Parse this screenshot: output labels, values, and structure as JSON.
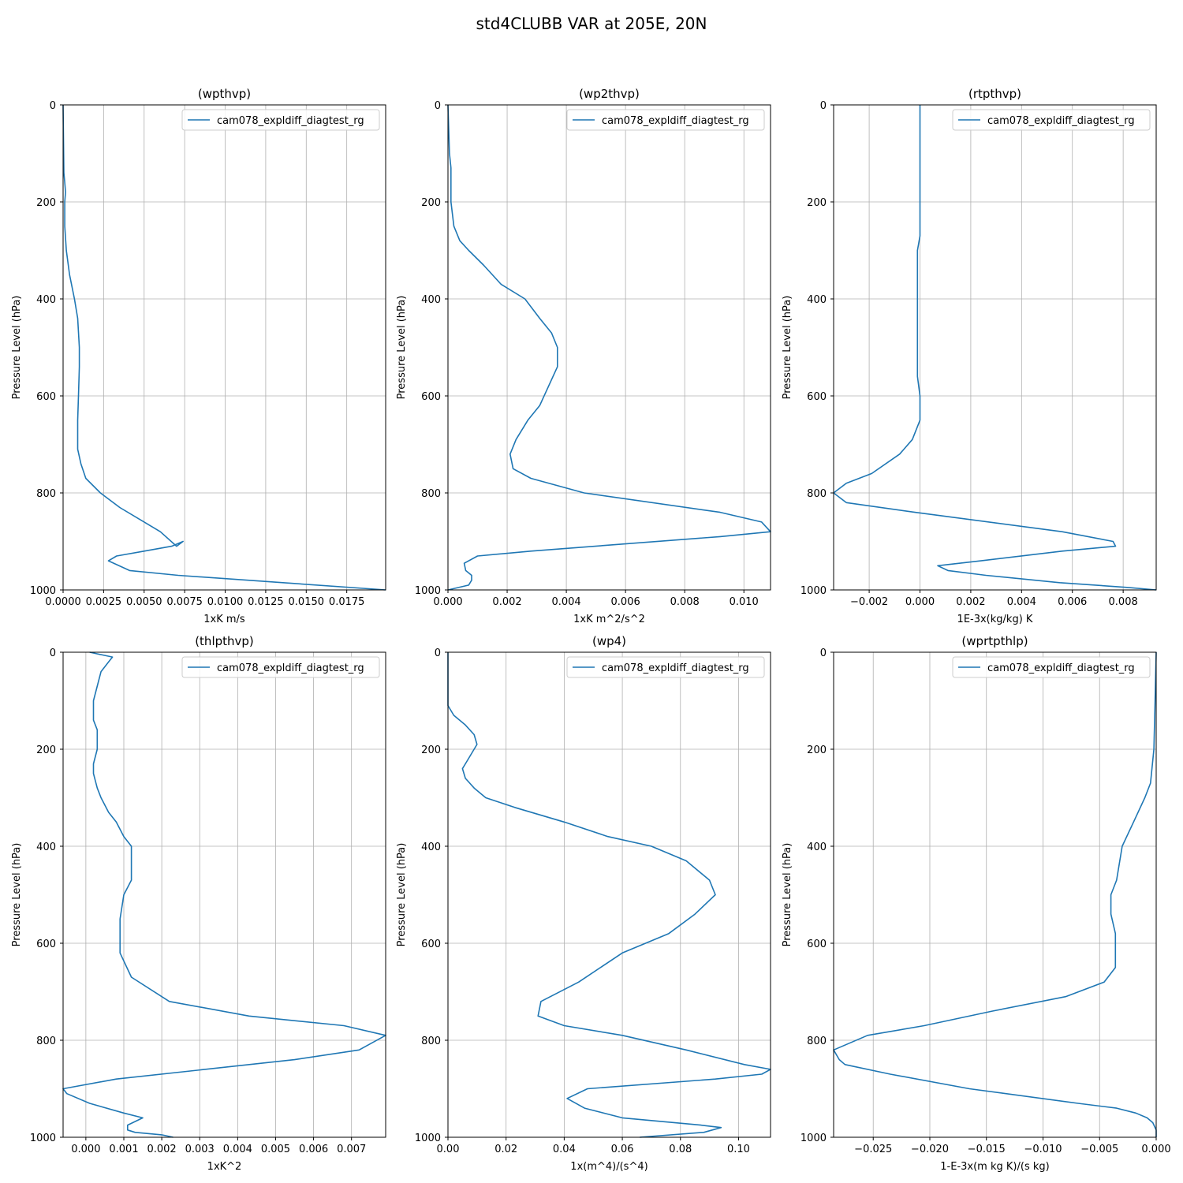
{
  "figure": {
    "suptitle": "std4CLUBB VAR at 205E, 20N",
    "line_color": "#1f77b4",
    "grid_color": "#b0b0b0"
  },
  "chart_data": [
    {
      "type": "line",
      "title": "(wpthvp)",
      "xlabel": "1xK m/s",
      "ylabel": "Pressure Level (hPa)",
      "xlim": [
        0,
        0.0199
      ],
      "ylim": [
        1000,
        0
      ],
      "xticks": [
        0,
        0.0025,
        0.005,
        0.0075,
        0.01,
        0.0125,
        0.015,
        0.0175
      ],
      "xtick_labels": [
        "0.0000",
        "0.0025",
        "0.0050",
        "0.0075",
        "0.0100",
        "0.0125",
        "0.0150",
        "0.0175"
      ],
      "yticks": [
        0,
        200,
        400,
        600,
        800,
        1000
      ],
      "legend_position": "upper-right",
      "series": [
        {
          "name": "cam078_expldiff_diagtest_rg",
          "x": [
            0,
            5e-05,
            0.0001,
            0.00015,
            0.0001,
            0.0001,
            0.0002,
            0.0004,
            0.0007,
            0.0009,
            0.001,
            0.001,
            0.00095,
            0.0009,
            0.0009,
            0.0011,
            0.0014,
            0.0023,
            0.0035,
            0.005,
            0.006,
            0.007,
            0.0074,
            0.0067,
            0.005,
            0.0033,
            0.0028,
            0.0041,
            0.0071,
            0.0199
          ],
          "y": [
            0,
            140,
            160,
            180,
            200,
            250,
            300,
            350,
            400,
            440,
            500,
            540,
            600,
            650,
            710,
            740,
            770,
            800,
            830,
            860,
            880,
            910,
            900,
            910,
            920,
            930,
            940,
            960,
            970,
            1000
          ]
        }
      ]
    },
    {
      "type": "line",
      "title": "(wp2thvp)",
      "xlabel": "1xK m^2/s^2",
      "ylabel": "Pressure Level (hPa)",
      "xlim": [
        0,
        0.0109
      ],
      "ylim": [
        1000,
        0
      ],
      "xticks": [
        0,
        0.002,
        0.004,
        0.006,
        0.008,
        0.01
      ],
      "xtick_labels": [
        "0.000",
        "0.002",
        "0.004",
        "0.006",
        "0.008",
        "0.010"
      ],
      "yticks": [
        0,
        200,
        400,
        600,
        800,
        1000
      ],
      "legend_position": "upper-right",
      "series": [
        {
          "name": "cam078_expldiff_diagtest_rg",
          "x": [
            0,
            5e-05,
            0.0001,
            0.0001,
            0.0001,
            0.0002,
            0.0004,
            0.0007,
            0.0012,
            0.0018,
            0.0026,
            0.0031,
            0.0035,
            0.0037,
            0.0037,
            0.0031,
            0.0027,
            0.0023,
            0.0021,
            0.0022,
            0.0028,
            0.0046,
            0.0092,
            0.0106,
            0.0109,
            0.0092,
            0.0028,
            0.001,
            0.00055,
            0.0006,
            0.0008,
            0.0008,
            0.0007,
            0
          ],
          "y": [
            0,
            100,
            130,
            160,
            200,
            250,
            280,
            300,
            330,
            370,
            400,
            440,
            470,
            500,
            540,
            620,
            650,
            690,
            720,
            750,
            770,
            800,
            840,
            860,
            880,
            890,
            920,
            930,
            945,
            960,
            970,
            980,
            990,
            1000
          ]
        }
      ]
    },
    {
      "type": "line",
      "title": "(rtpthvp)",
      "xlabel": "1E-3x(kg/kg) K",
      "ylabel": "Pressure Level (hPa)",
      "xlim": [
        -0.0034,
        0.0093
      ],
      "ylim": [
        1000,
        0
      ],
      "xticks": [
        -0.002,
        0,
        0.002,
        0.004,
        0.006,
        0.008
      ],
      "xtick_labels": [
        "−0.002",
        "0.000",
        "0.002",
        "0.004",
        "0.006",
        "0.008"
      ],
      "yticks": [
        0,
        200,
        400,
        600,
        800,
        1000
      ],
      "legend_position": "upper-right",
      "series": [
        {
          "name": "cam078_expldiff_diagtest_rg",
          "x": [
            0,
            0,
            0,
            -0.0001,
            -0.0001,
            -0.0001,
            -0.0001,
            0,
            0,
            -0.0003,
            -0.0008,
            -0.0019,
            -0.0029,
            -0.0034,
            -0.0029,
            -0.0002,
            0.0056,
            0.0076,
            0.0077,
            0.0056,
            0.0024,
            0.0007,
            0.0011,
            0.0026,
            0.0055,
            0.0082,
            0.0093
          ],
          "y": [
            0,
            100,
            270,
            300,
            400,
            500,
            560,
            600,
            650,
            690,
            720,
            760,
            780,
            800,
            820,
            840,
            880,
            900,
            910,
            920,
            940,
            950,
            960,
            970,
            985,
            995,
            1000
          ]
        }
      ]
    },
    {
      "type": "line",
      "title": "(thlpthvp)",
      "xlabel": "1xK^2",
      "ylabel": "Pressure Level (hPa)",
      "xlim": [
        -0.0006,
        0.0079
      ],
      "ylim": [
        1000,
        0
      ],
      "xticks": [
        0,
        0.001,
        0.002,
        0.003,
        0.004,
        0.005,
        0.006,
        0.007
      ],
      "xtick_labels": [
        "0.000",
        "0.001",
        "0.002",
        "0.003",
        "0.004",
        "0.005",
        "0.006",
        "0.007"
      ],
      "yticks": [
        0,
        200,
        400,
        600,
        800,
        1000
      ],
      "legend_position": "upper-right",
      "series": [
        {
          "name": "cam078_expldiff_diagtest_rg",
          "x": [
            0.0001,
            0.0007,
            0.0006,
            0.0004,
            0.0003,
            0.0002,
            0.0002,
            0.0003,
            0.0003,
            0.0002,
            0.0002,
            0.0003,
            0.0004,
            0.0006,
            0.0008,
            0.001,
            0.0012,
            0.0012,
            0.001,
            0.0009,
            0.0009,
            0.0012,
            0.0022,
            0.0043,
            0.0068,
            0.0079,
            0.0072,
            0.0055,
            0.0008,
            -0.0006,
            -0.0005,
            0.0001,
            0.001,
            0.0015,
            0.0011,
            0.0011,
            0.0013,
            0.002,
            0.0023
          ],
          "y": [
            0,
            10,
            20,
            40,
            70,
            100,
            140,
            160,
            200,
            230,
            250,
            280,
            300,
            330,
            350,
            380,
            400,
            470,
            500,
            550,
            620,
            670,
            720,
            750,
            770,
            790,
            820,
            840,
            880,
            900,
            910,
            930,
            950,
            960,
            975,
            985,
            990,
            995,
            1000
          ]
        }
      ]
    },
    {
      "type": "line",
      "title": "(wp4)",
      "xlabel": "1x(m^4)/(s^4)",
      "ylabel": "Pressure Level (hPa)",
      "xlim": [
        0,
        0.111
      ],
      "ylim": [
        1000,
        0
      ],
      "xticks": [
        0,
        0.02,
        0.04,
        0.06,
        0.08,
        0.1
      ],
      "xtick_labels": [
        "0.00",
        "0.02",
        "0.04",
        "0.06",
        "0.08",
        "0.10"
      ],
      "yticks": [
        0,
        200,
        400,
        600,
        800,
        1000
      ],
      "legend_position": "upper-right",
      "series": [
        {
          "name": "cam078_expldiff_diagtest_rg",
          "x": [
            0,
            0,
            0.002,
            0.006,
            0.009,
            0.01,
            0.008,
            0.006,
            0.005,
            0.006,
            0.009,
            0.013,
            0.023,
            0.04,
            0.055,
            0.07,
            0.082,
            0.09,
            0.092,
            0.085,
            0.076,
            0.06,
            0.045,
            0.032,
            0.031,
            0.04,
            0.06,
            0.082,
            0.102,
            0.111,
            0.108,
            0.092,
            0.048,
            0.041,
            0.047,
            0.06,
            0.087,
            0.094,
            0.088,
            0.066
          ],
          "y": [
            0,
            110,
            130,
            150,
            170,
            190,
            210,
            230,
            240,
            260,
            280,
            300,
            320,
            350,
            380,
            400,
            430,
            470,
            500,
            540,
            580,
            620,
            680,
            720,
            750,
            770,
            790,
            820,
            850,
            860,
            870,
            880,
            900,
            920,
            940,
            960,
            975,
            980,
            990,
            1000
          ]
        }
      ]
    },
    {
      "type": "line",
      "title": "(wprtpthlp)",
      "xlabel": "1-E-3x(m kg K)/(s kg)",
      "ylabel": "Pressure Level (hPa)",
      "xlim": [
        -0.0285,
        0
      ],
      "ylim": [
        1000,
        0
      ],
      "xticks": [
        -0.025,
        -0.02,
        -0.015,
        -0.01,
        -0.005,
        0
      ],
      "xtick_labels": [
        "−0.025",
        "−0.020",
        "−0.015",
        "−0.010",
        "−0.005",
        "0.000"
      ],
      "yticks": [
        0,
        200,
        400,
        600,
        800,
        1000
      ],
      "legend_position": "upper-right",
      "series": [
        {
          "name": "cam078_expldiff_diagtest_rg",
          "x": [
            0,
            -0.0001,
            -0.0002,
            -0.0005,
            -0.001,
            -0.002,
            -0.003,
            -0.0035,
            -0.004,
            -0.004,
            -0.0036,
            -0.0036,
            -0.0046,
            -0.008,
            -0.0145,
            -0.0205,
            -0.0255,
            -0.0285,
            -0.028,
            -0.0275,
            -0.0235,
            -0.0165,
            -0.0069,
            -0.0035,
            -0.0018,
            -0.0008,
            -0.0003,
            0,
            0
          ],
          "y": [
            0,
            100,
            200,
            270,
            300,
            350,
            400,
            470,
            500,
            540,
            580,
            650,
            680,
            710,
            740,
            770,
            790,
            820,
            840,
            850,
            870,
            900,
            930,
            940,
            950,
            960,
            970,
            985,
            1000
          ]
        }
      ]
    }
  ]
}
